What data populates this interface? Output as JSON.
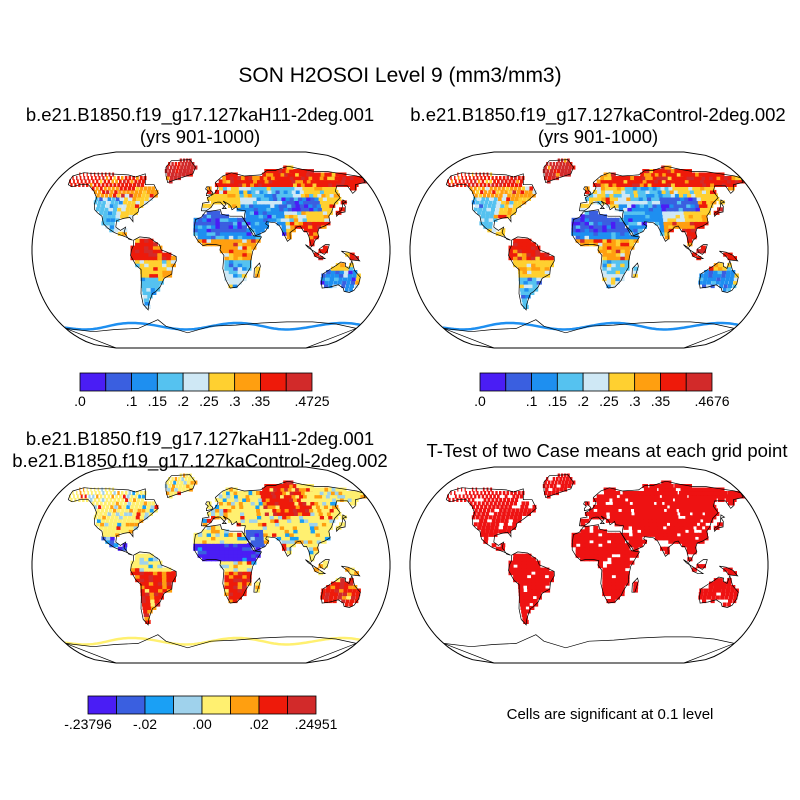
{
  "title": "SON H2OSOI Level 9 (mm3/mm3)",
  "footnote": "Cells are significant at 0.1 level",
  "chart_data": [
    {
      "type": "heatmap",
      "panel": "top-left",
      "title_line1": "b.e21.B1850.f19_g17.127kaH11-2deg.001",
      "title_line2": "(yrs 901-1000)",
      "projection": "robinson",
      "colorbar": {
        "colors": [
          "#4a1df5",
          "#3a5fe0",
          "#1e8ff0",
          "#55c2f0",
          "#cfe8f5",
          "#ffd030",
          "#ff9f10",
          "#ee1a0a",
          "#d22a2a"
        ],
        "tick_labels": [
          ".0",
          ".1",
          ".15",
          ".2",
          ".25",
          ".3",
          ".35",
          ".4725"
        ],
        "tick_edges": [
          0,
          2,
          3,
          4,
          5,
          6,
          7,
          9
        ]
      }
    },
    {
      "type": "heatmap",
      "panel": "top-right",
      "title_line1": "b.e21.B1850.f19_g17.127kaControl-2deg.002",
      "title_line2": "(yrs 901-1000)",
      "projection": "robinson",
      "colorbar": {
        "colors": [
          "#4a1df5",
          "#3a5fe0",
          "#1e8ff0",
          "#55c2f0",
          "#cfe8f5",
          "#ffd030",
          "#ff9f10",
          "#ee1a0a",
          "#d22a2a"
        ],
        "tick_labels": [
          ".0",
          ".1",
          ".15",
          ".2",
          ".25",
          ".3",
          ".35",
          ".4676"
        ],
        "tick_edges": [
          0,
          2,
          3,
          4,
          5,
          6,
          7,
          9
        ]
      }
    },
    {
      "type": "heatmap",
      "panel": "bottom-left",
      "title_line1": "b.e21.B1850.f19_g17.127kaH11-2deg.001",
      "title_line2": "b.e21.B1850.f19_g17.127kaControl-2deg.002",
      "projection": "robinson",
      "colorbar": {
        "colors": [
          "#4a1df5",
          "#3a5fe0",
          "#1aa0f5",
          "#9fd2ec",
          "#fff070",
          "#ff9f10",
          "#ee1a0a",
          "#d22a2a"
        ],
        "tick_labels": [
          "-.23796",
          "-.02",
          ".00",
          ".02",
          ".24951"
        ],
        "tick_edges": [
          0,
          2,
          4,
          6,
          8
        ]
      }
    },
    {
      "type": "heatmap",
      "panel": "bottom-right",
      "title_line1": "T-Test of two Case means at each grid point",
      "projection": "robinson",
      "significant_color": "#ee1212"
    }
  ]
}
